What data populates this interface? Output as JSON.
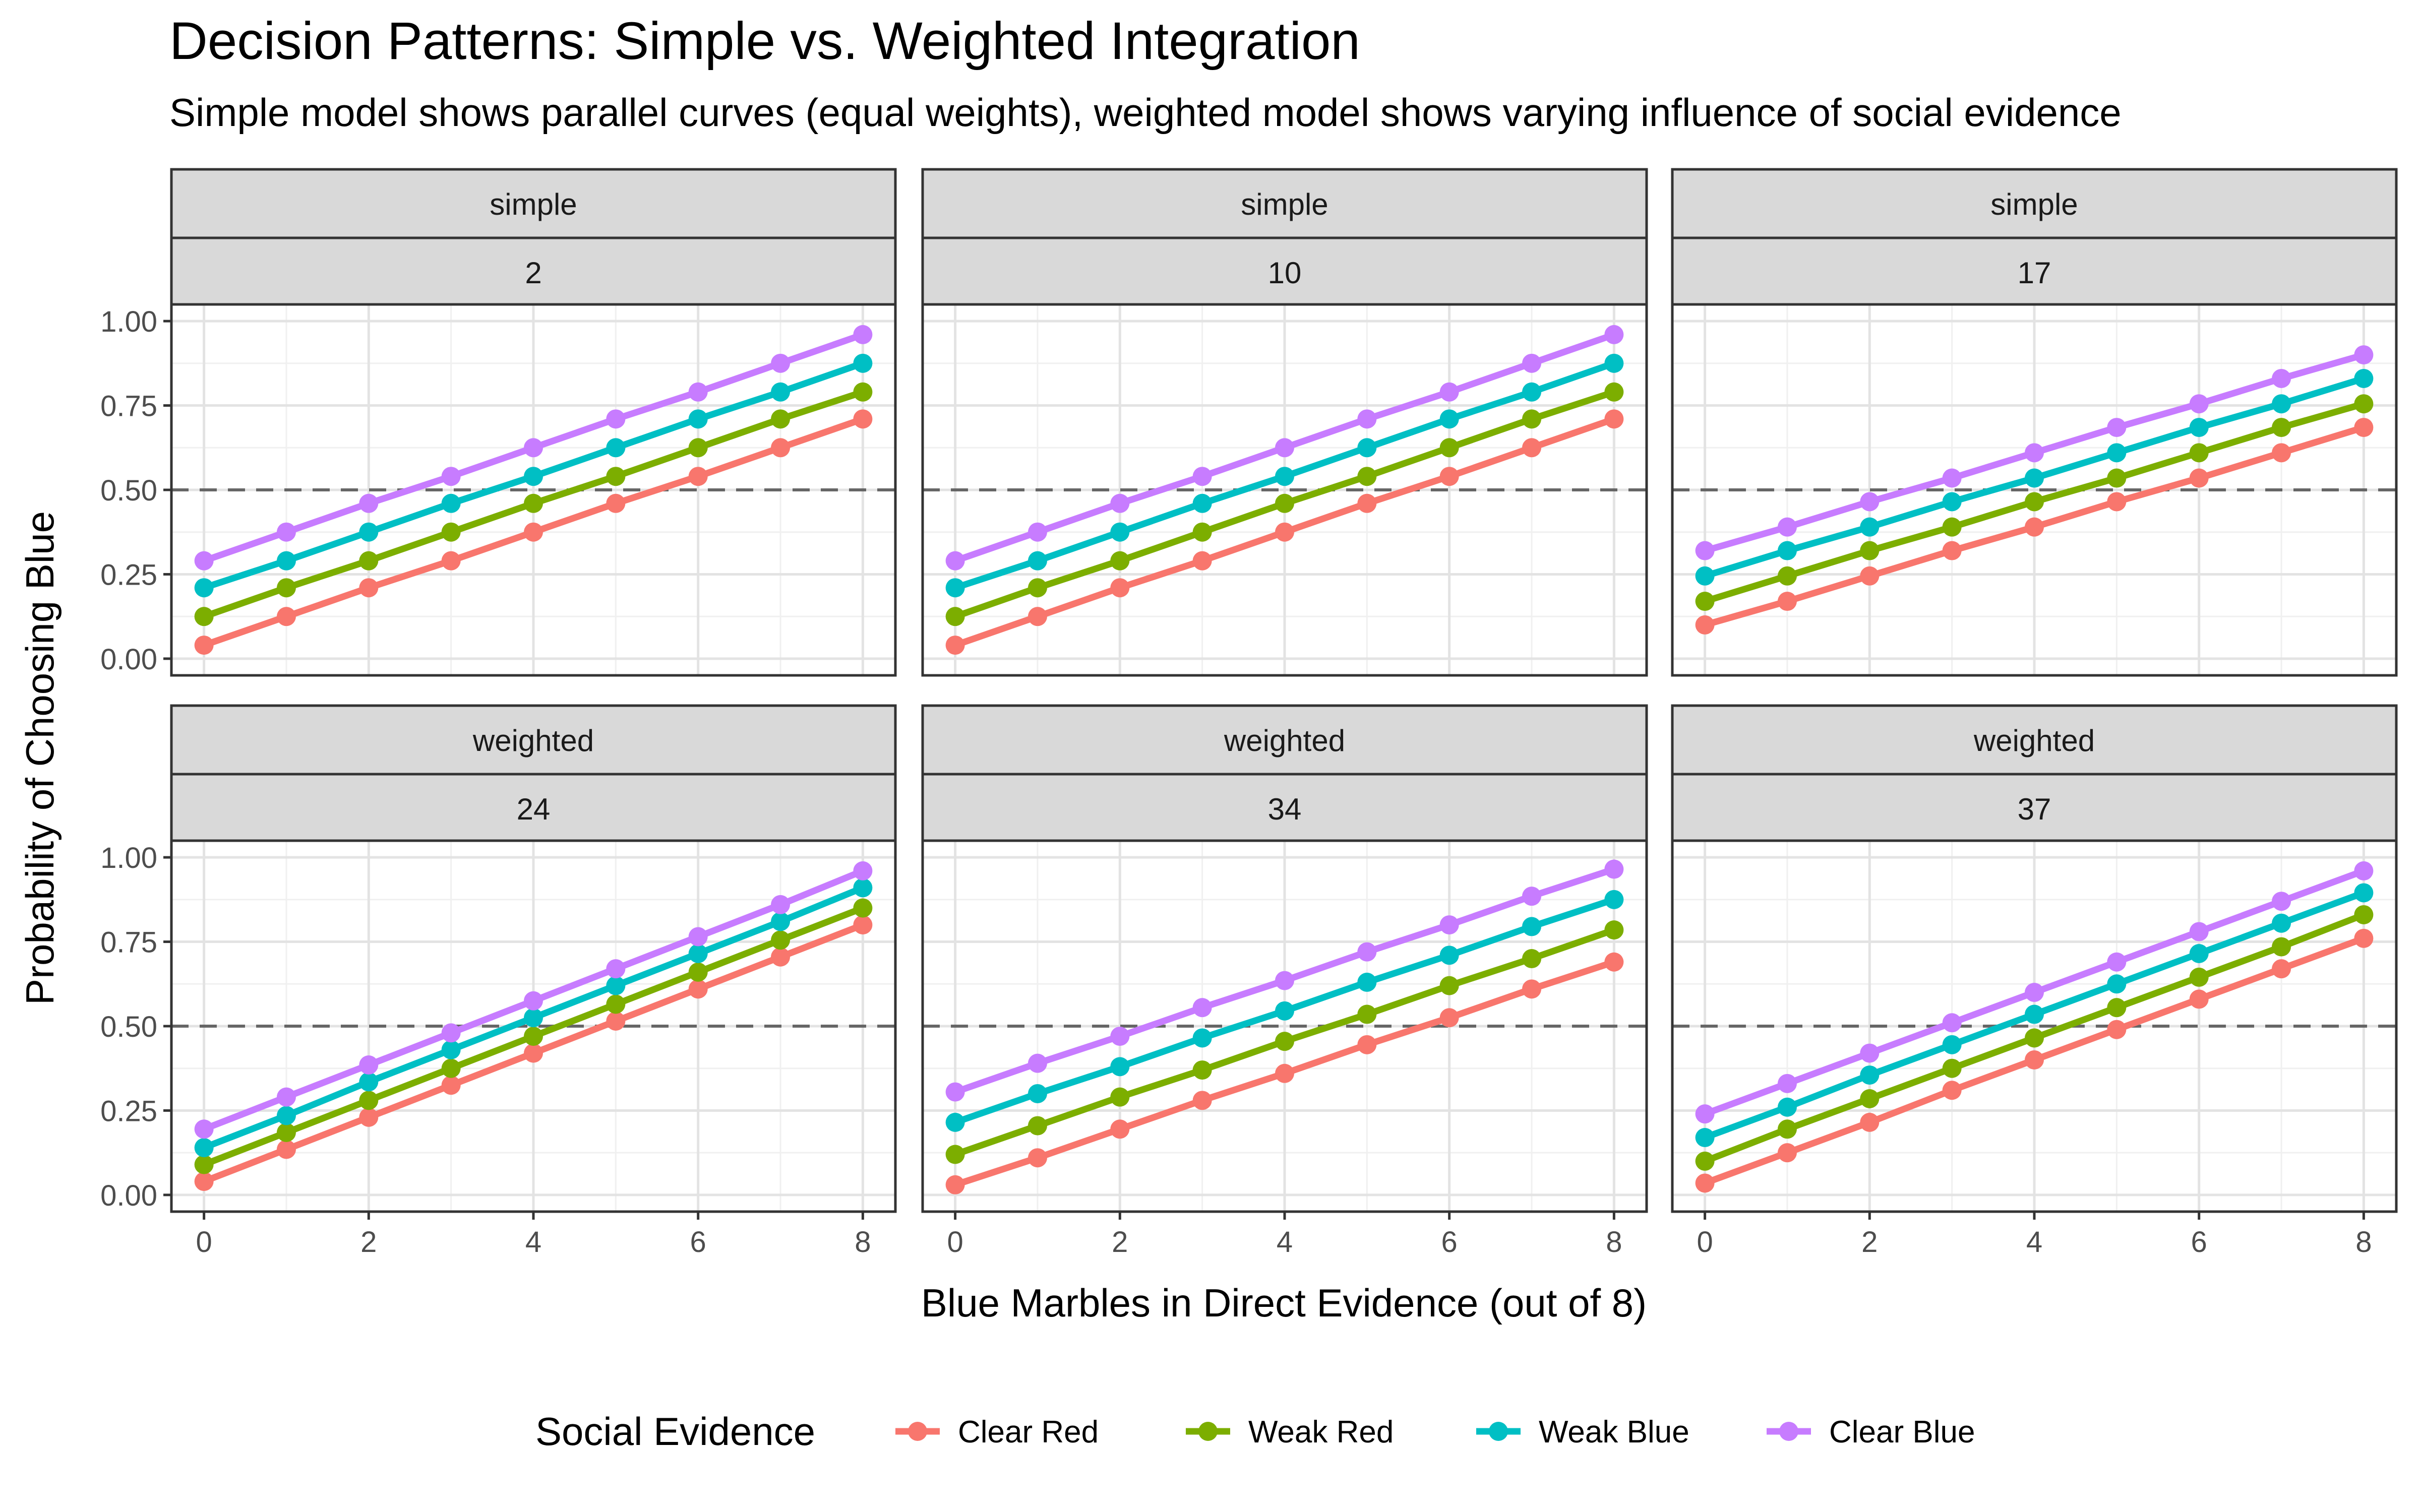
{
  "title": "Decision Patterns: Simple vs. Weighted Integration",
  "subtitle": "Simple model shows parallel curves (equal weights), weighted model shows varying influence of social evidence",
  "chart_data": {
    "type": "line",
    "facet_layout": "2 rows x 3 columns, shared axes",
    "xlabel": "Blue Marbles in Direct Evidence (out of 8)",
    "ylabel": "Probability of Choosing Blue",
    "xlim": [
      0,
      8
    ],
    "ylim": [
      0,
      1
    ],
    "x_ticks": [
      "0",
      "2",
      "4",
      "6",
      "8"
    ],
    "y_ticks": [
      "0.00",
      "0.25",
      "0.50",
      "0.75",
      "1.00"
    ],
    "reference_line": {
      "y": 0.5,
      "style": "dashed"
    },
    "grid": true,
    "legend": {
      "title": "Social Evidence",
      "position": "bottom",
      "items": [
        "Clear Red",
        "Weak Red",
        "Weak Blue",
        "Clear Blue"
      ]
    },
    "series_colors": {
      "Clear Red": "#F8766D",
      "Weak Red": "#7CAE00",
      "Weak Blue": "#00BFC4",
      "Clear Blue": "#C77CFF"
    },
    "x": [
      0,
      1,
      2,
      3,
      4,
      5,
      6,
      7,
      8
    ],
    "panels": [
      {
        "model": "simple",
        "participant": "2",
        "series": [
          {
            "name": "Clear Red",
            "values": [
              0.04,
              0.125,
              0.21,
              0.29,
              0.375,
              0.46,
              0.54,
              0.625,
              0.71
            ]
          },
          {
            "name": "Weak Red",
            "values": [
              0.125,
              0.21,
              0.29,
              0.375,
              0.46,
              0.54,
              0.625,
              0.71,
              0.79
            ]
          },
          {
            "name": "Weak Blue",
            "values": [
              0.21,
              0.29,
              0.375,
              0.46,
              0.54,
              0.625,
              0.71,
              0.79,
              0.875
            ]
          },
          {
            "name": "Clear Blue",
            "values": [
              0.29,
              0.375,
              0.46,
              0.54,
              0.625,
              0.71,
              0.79,
              0.875,
              0.96
            ]
          }
        ]
      },
      {
        "model": "simple",
        "participant": "10",
        "series": [
          {
            "name": "Clear Red",
            "values": [
              0.04,
              0.125,
              0.21,
              0.29,
              0.375,
              0.46,
              0.54,
              0.625,
              0.71
            ]
          },
          {
            "name": "Weak Red",
            "values": [
              0.125,
              0.21,
              0.29,
              0.375,
              0.46,
              0.54,
              0.625,
              0.71,
              0.79
            ]
          },
          {
            "name": "Weak Blue",
            "values": [
              0.21,
              0.29,
              0.375,
              0.46,
              0.54,
              0.625,
              0.71,
              0.79,
              0.875
            ]
          },
          {
            "name": "Clear Blue",
            "values": [
              0.29,
              0.375,
              0.46,
              0.54,
              0.625,
              0.71,
              0.79,
              0.875,
              0.96
            ]
          }
        ]
      },
      {
        "model": "simple",
        "participant": "17",
        "series": [
          {
            "name": "Clear Red",
            "values": [
              0.1,
              0.17,
              0.245,
              0.32,
              0.39,
              0.465,
              0.535,
              0.61,
              0.685
            ]
          },
          {
            "name": "Weak Red",
            "values": [
              0.17,
              0.245,
              0.32,
              0.39,
              0.465,
              0.535,
              0.61,
              0.685,
              0.755
            ]
          },
          {
            "name": "Weak Blue",
            "values": [
              0.245,
              0.32,
              0.39,
              0.465,
              0.535,
              0.61,
              0.685,
              0.755,
              0.83
            ]
          },
          {
            "name": "Clear Blue",
            "values": [
              0.32,
              0.39,
              0.465,
              0.535,
              0.61,
              0.685,
              0.755,
              0.83,
              0.9
            ]
          }
        ]
      },
      {
        "model": "weighted",
        "participant": "24",
        "series": [
          {
            "name": "Clear Red",
            "values": [
              0.04,
              0.135,
              0.23,
              0.325,
              0.42,
              0.515,
              0.61,
              0.705,
              0.8
            ]
          },
          {
            "name": "Weak Red",
            "values": [
              0.09,
              0.185,
              0.28,
              0.375,
              0.47,
              0.565,
              0.66,
              0.755,
              0.85
            ]
          },
          {
            "name": "Weak Blue",
            "values": [
              0.14,
              0.235,
              0.335,
              0.43,
              0.525,
              0.62,
              0.715,
              0.81,
              0.91
            ]
          },
          {
            "name": "Clear Blue",
            "values": [
              0.195,
              0.29,
              0.385,
              0.48,
              0.575,
              0.67,
              0.765,
              0.86,
              0.96
            ]
          }
        ]
      },
      {
        "model": "weighted",
        "participant": "34",
        "series": [
          {
            "name": "Clear Red",
            "values": [
              0.03,
              0.11,
              0.195,
              0.28,
              0.36,
              0.445,
              0.525,
              0.61,
              0.69
            ]
          },
          {
            "name": "Weak Red",
            "values": [
              0.12,
              0.205,
              0.29,
              0.37,
              0.455,
              0.535,
              0.62,
              0.7,
              0.785
            ]
          },
          {
            "name": "Weak Blue",
            "values": [
              0.215,
              0.3,
              0.38,
              0.465,
              0.545,
              0.63,
              0.71,
              0.795,
              0.875
            ]
          },
          {
            "name": "Clear Blue",
            "values": [
              0.305,
              0.39,
              0.47,
              0.555,
              0.635,
              0.72,
              0.8,
              0.885,
              0.965
            ]
          }
        ]
      },
      {
        "model": "weighted",
        "participant": "37",
        "series": [
          {
            "name": "Clear Red",
            "values": [
              0.035,
              0.125,
              0.215,
              0.31,
              0.4,
              0.49,
              0.58,
              0.67,
              0.76
            ]
          },
          {
            "name": "Weak Red",
            "values": [
              0.1,
              0.195,
              0.285,
              0.375,
              0.465,
              0.555,
              0.645,
              0.735,
              0.83
            ]
          },
          {
            "name": "Weak Blue",
            "values": [
              0.17,
              0.26,
              0.355,
              0.445,
              0.535,
              0.625,
              0.715,
              0.805,
              0.895
            ]
          },
          {
            "name": "Clear Blue",
            "values": [
              0.24,
              0.33,
              0.42,
              0.51,
              0.6,
              0.69,
              0.78,
              0.87,
              0.96
            ]
          }
        ]
      }
    ]
  }
}
